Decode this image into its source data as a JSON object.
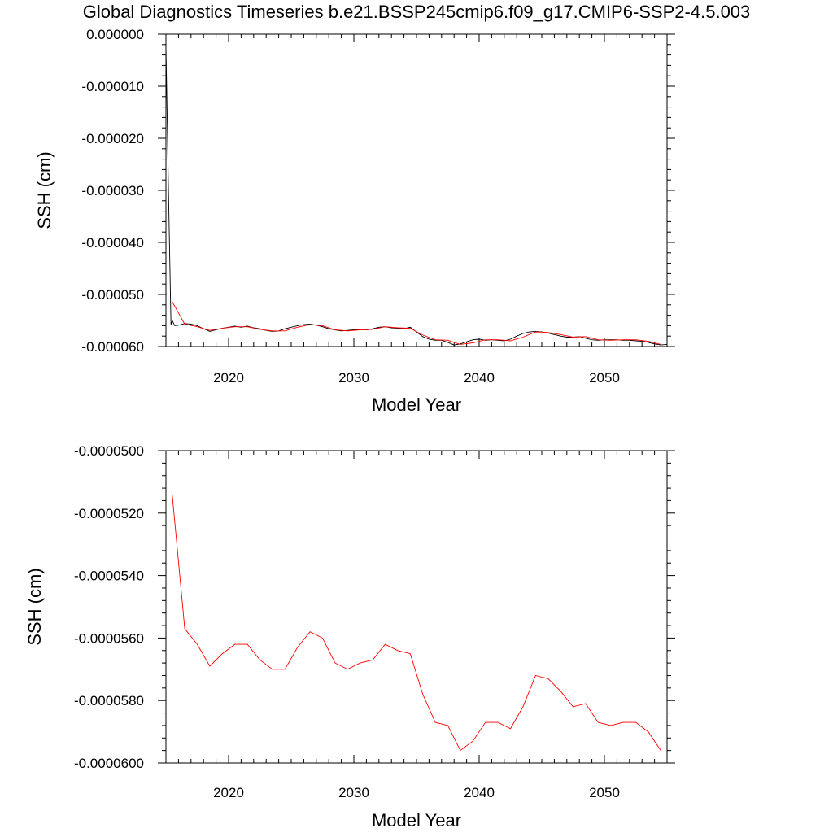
{
  "title": "Global Diagnostics Timeseries b.e21.BSSP245cmip6.f09_g17.CMIP6-SSP2-4.5.003",
  "colors": {
    "monthly_line": "#000000",
    "annual_line": "#ff0000",
    "axis": "#000000"
  },
  "chart_data": [
    {
      "type": "line",
      "xlabel": "Model Year",
      "ylabel": "SSH (cm)",
      "xlim": [
        2015,
        2055
      ],
      "ylim": [
        -6e-05,
        0
      ],
      "xticks": [
        2020,
        2030,
        2040,
        2050
      ],
      "xtick_labels": [
        "2020",
        "2030",
        "2040",
        "2050"
      ],
      "yticks": [
        0,
        -1e-05,
        -2e-05,
        -3e-05,
        -4e-05,
        -5e-05,
        -6e-05
      ],
      "ytick_labels": [
        "0.000000",
        "-0.000010",
        "-0.000020",
        "-0.000030",
        "-0.000040",
        "-0.000050",
        "-0.000060"
      ],
      "grid": false,
      "series": [
        {
          "style": "monthly",
          "x": [
            2015.0,
            2015.2,
            2015.4,
            2015.5,
            2015.7,
            2016.0,
            2016.5,
            2017.0,
            2017.5,
            2018.0,
            2018.5,
            2019.0,
            2019.5,
            2020.0,
            2020.5,
            2021.0,
            2021.5,
            2022.0,
            2022.5,
            2023.0,
            2023.5,
            2024.0,
            2024.5,
            2025.0,
            2025.5,
            2026.0,
            2026.5,
            2027.0,
            2027.5,
            2028.0,
            2028.5,
            2029.0,
            2029.5,
            2030.0,
            2030.5,
            2031.0,
            2031.5,
            2032.0,
            2032.5,
            2033.0,
            2033.5,
            2034.0,
            2034.5,
            2035.0,
            2035.5,
            2036.0,
            2036.5,
            2037.0,
            2037.5,
            2038.0,
            2038.5,
            2039.0,
            2039.5,
            2040.0,
            2040.5,
            2041.0,
            2041.5,
            2042.0,
            2042.5,
            2043.0,
            2043.5,
            2044.0,
            2044.5,
            2045.0,
            2045.5,
            2046.0,
            2046.5,
            2047.0,
            2047.5,
            2048.0,
            2048.5,
            2049.0,
            2049.5,
            2050.0,
            2050.5,
            2051.0,
            2051.5,
            2052.0,
            2052.5,
            2053.0,
            2053.5,
            2054.0,
            2054.5,
            2055.0
          ],
          "values": [
            -2.5e-06,
            -3e-05,
            -5.58e-05,
            -5.5e-05,
            -5.6e-05,
            -5.59e-05,
            -5.56e-05,
            -5.57e-05,
            -5.6e-05,
            -5.66e-05,
            -5.71e-05,
            -5.68e-05,
            -5.65e-05,
            -5.63e-05,
            -5.61e-05,
            -5.63e-05,
            -5.61e-05,
            -5.64e-05,
            -5.66e-05,
            -5.69e-05,
            -5.71e-05,
            -5.7e-05,
            -5.66e-05,
            -5.63e-05,
            -5.6e-05,
            -5.58e-05,
            -5.57e-05,
            -5.59e-05,
            -5.62e-05,
            -5.66e-05,
            -5.68e-05,
            -5.7e-05,
            -5.69e-05,
            -5.68e-05,
            -5.67e-05,
            -5.68e-05,
            -5.66e-05,
            -5.63e-05,
            -5.62e-05,
            -5.64e-05,
            -5.65e-05,
            -5.66e-05,
            -5.63e-05,
            -5.72e-05,
            -5.81e-05,
            -5.86e-05,
            -5.88e-05,
            -5.88e-05,
            -5.92e-05,
            -5.97e-05,
            -5.95e-05,
            -5.91e-05,
            -5.87e-05,
            -5.86e-05,
            -5.88e-05,
            -5.87e-05,
            -5.88e-05,
            -5.89e-05,
            -5.86e-05,
            -5.8e-05,
            -5.75e-05,
            -5.72e-05,
            -5.71e-05,
            -5.72e-05,
            -5.74e-05,
            -5.77e-05,
            -5.8e-05,
            -5.82e-05,
            -5.82e-05,
            -5.81e-05,
            -5.84e-05,
            -5.87e-05,
            -5.88e-05,
            -5.87e-05,
            -5.87e-05,
            -5.87e-05,
            -5.88e-05,
            -5.88e-05,
            -5.89e-05,
            -5.9e-05,
            -5.92e-05,
            -5.95e-05,
            -5.97e-05,
            -5.96e-05
          ]
        },
        {
          "style": "annual",
          "x": [
            2015.5,
            2016.5,
            2017.5,
            2018.5,
            2019.5,
            2020.5,
            2021.5,
            2022.5,
            2023.5,
            2024.5,
            2025.5,
            2026.5,
            2027.5,
            2028.5,
            2029.5,
            2030.5,
            2031.5,
            2032.5,
            2033.5,
            2034.5,
            2035.5,
            2036.5,
            2037.5,
            2038.5,
            2039.5,
            2040.5,
            2041.5,
            2042.5,
            2043.5,
            2044.5,
            2045.5,
            2046.5,
            2047.5,
            2048.5,
            2049.5,
            2050.5,
            2051.5,
            2052.5,
            2053.5,
            2054.5
          ],
          "values": [
            -5.14e-05,
            -5.57e-05,
            -5.62e-05,
            -5.69e-05,
            -5.65e-05,
            -5.62e-05,
            -5.62e-05,
            -5.67e-05,
            -5.7e-05,
            -5.7e-05,
            -5.63e-05,
            -5.58e-05,
            -5.6e-05,
            -5.68e-05,
            -5.7e-05,
            -5.68e-05,
            -5.67e-05,
            -5.62e-05,
            -5.64e-05,
            -5.65e-05,
            -5.78e-05,
            -5.87e-05,
            -5.88e-05,
            -5.96e-05,
            -5.93e-05,
            -5.87e-05,
            -5.87e-05,
            -5.89e-05,
            -5.82e-05,
            -5.72e-05,
            -5.73e-05,
            -5.77e-05,
            -5.82e-05,
            -5.81e-05,
            -5.87e-05,
            -5.88e-05,
            -5.87e-05,
            -5.87e-05,
            -5.9e-05,
            -5.96e-05
          ]
        }
      ]
    },
    {
      "type": "line",
      "xlabel": "Model Year",
      "ylabel": "SSH (cm)",
      "xlim": [
        2015,
        2055
      ],
      "ylim": [
        -6e-05,
        -5e-05
      ],
      "xticks": [
        2020,
        2030,
        2040,
        2050
      ],
      "xtick_labels": [
        "2020",
        "2030",
        "2040",
        "2050"
      ],
      "yticks": [
        -5e-05,
        -5.2e-05,
        -5.4e-05,
        -5.6e-05,
        -5.8e-05,
        -6e-05
      ],
      "ytick_labels": [
        "-0.0000500",
        "-0.0000520",
        "-0.0000540",
        "-0.0000560",
        "-0.0000580",
        "-0.0000600"
      ],
      "grid": false,
      "series": [
        {
          "style": "annual",
          "x": [
            2015.5,
            2016.5,
            2017.5,
            2018.5,
            2019.5,
            2020.5,
            2021.5,
            2022.5,
            2023.5,
            2024.5,
            2025.5,
            2026.5,
            2027.5,
            2028.5,
            2029.5,
            2030.5,
            2031.5,
            2032.5,
            2033.5,
            2034.5,
            2035.5,
            2036.5,
            2037.5,
            2038.5,
            2039.5,
            2040.5,
            2041.5,
            2042.5,
            2043.5,
            2044.5,
            2045.5,
            2046.5,
            2047.5,
            2048.5,
            2049.5,
            2050.5,
            2051.5,
            2052.5,
            2053.5,
            2054.5
          ],
          "values": [
            -5.14e-05,
            -5.57e-05,
            -5.62e-05,
            -5.69e-05,
            -5.65e-05,
            -5.62e-05,
            -5.62e-05,
            -5.67e-05,
            -5.7e-05,
            -5.7e-05,
            -5.63e-05,
            -5.58e-05,
            -5.6e-05,
            -5.68e-05,
            -5.7e-05,
            -5.68e-05,
            -5.67e-05,
            -5.62e-05,
            -5.64e-05,
            -5.65e-05,
            -5.78e-05,
            -5.87e-05,
            -5.88e-05,
            -5.96e-05,
            -5.93e-05,
            -5.87e-05,
            -5.87e-05,
            -5.89e-05,
            -5.82e-05,
            -5.72e-05,
            -5.73e-05,
            -5.77e-05,
            -5.82e-05,
            -5.81e-05,
            -5.87e-05,
            -5.88e-05,
            -5.87e-05,
            -5.87e-05,
            -5.9e-05,
            -5.96e-05
          ]
        }
      ]
    }
  ]
}
